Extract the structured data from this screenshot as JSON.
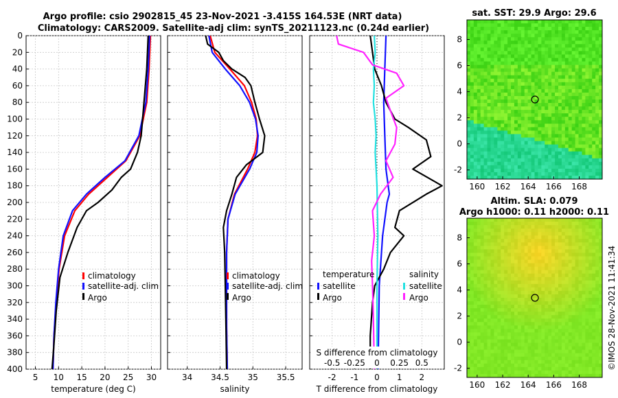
{
  "title": {
    "line1": "Argo profile: csio 2902815_45 23-Nov-2021 -3.415S 164.53E (NRT data)",
    "line2": "Climatology: CARS2009. Satellite-adj clim: synTS_20211123.nc (0.24d earlier)"
  },
  "side_stamp": "©IMOS 28-Nov-2021 11:41:34",
  "colors": {
    "climatology": "#ff0000",
    "satellite_adj": "#1010ff",
    "argo": "#000000",
    "s_satellite": "#20e0e0",
    "s_argo": "#ff20ff",
    "zero_line": "#000000"
  },
  "chart_data": [
    {
      "type": "line",
      "name": "temperature-profile",
      "xlabel": "temperature (deg C)",
      "ylabel": "",
      "xlim": [
        3,
        32
      ],
      "ylim": [
        0,
        400
      ],
      "xticks": [
        5,
        10,
        15,
        20,
        25,
        30
      ],
      "yticks": [
        0,
        20,
        40,
        60,
        80,
        100,
        120,
        140,
        160,
        180,
        200,
        220,
        240,
        260,
        280,
        300,
        320,
        340,
        360,
        380,
        400
      ],
      "legend": [
        "climatology",
        "satellite-adj. clim",
        "Argo"
      ],
      "legend_position": "lower-right",
      "series": [
        {
          "name": "climatology",
          "color": "#ff0000",
          "depth": [
            0,
            40,
            80,
            120,
            150,
            170,
            190,
            210,
            240,
            280,
            320,
            360,
            400
          ],
          "values": [
            29.8,
            29.5,
            29.0,
            27.5,
            24.5,
            20.5,
            16.5,
            13.5,
            11.3,
            10.1,
            9.5,
            9.0,
            8.8
          ]
        },
        {
          "name": "satellite-adj. clim",
          "color": "#1010ff",
          "depth": [
            0,
            40,
            80,
            120,
            150,
            170,
            190,
            210,
            240,
            280,
            320,
            360,
            400
          ],
          "values": [
            29.6,
            29.3,
            28.8,
            27.3,
            24.3,
            20.0,
            16.0,
            13.0,
            11.0,
            10.0,
            9.4,
            9.0,
            8.8
          ]
        },
        {
          "name": "Argo",
          "color": "#000000",
          "depth": [
            0,
            40,
            80,
            120,
            140,
            160,
            170,
            185,
            200,
            210,
            230,
            260,
            290,
            330,
            370,
            400
          ],
          "values": [
            29.3,
            29.0,
            28.4,
            27.8,
            27.0,
            25.5,
            23.5,
            21.5,
            18.5,
            16.0,
            14.0,
            12.0,
            10.3,
            9.5,
            9.0,
            8.6
          ]
        }
      ]
    },
    {
      "type": "line",
      "name": "salinity-profile",
      "xlabel": "salinity",
      "xlim": [
        33.7,
        35.75
      ],
      "ylim": [
        0,
        400
      ],
      "xticks": [
        34,
        34.5,
        35,
        35.5
      ],
      "legend": [
        "climatology",
        "satellite-adj. clim",
        "Argo"
      ],
      "legend_position": "lower-left",
      "series": [
        {
          "name": "climatology",
          "color": "#ff0000",
          "depth": [
            0,
            20,
            40,
            60,
            80,
            100,
            120,
            140,
            160,
            190,
            220,
            260,
            300,
            350,
            400
          ],
          "values": [
            34.35,
            34.42,
            34.65,
            34.87,
            34.98,
            35.05,
            35.07,
            35.03,
            34.92,
            34.72,
            34.62,
            34.6,
            34.6,
            34.6,
            34.61
          ]
        },
        {
          "name": "satellite-adj. clim",
          "color": "#1010ff",
          "depth": [
            0,
            20,
            40,
            60,
            80,
            100,
            120,
            140,
            160,
            190,
            220,
            260,
            300,
            350,
            400
          ],
          "values": [
            34.33,
            34.38,
            34.58,
            34.8,
            34.95,
            35.04,
            35.08,
            35.06,
            34.95,
            34.73,
            34.62,
            34.6,
            34.6,
            34.6,
            34.61
          ]
        },
        {
          "name": "Argo",
          "color": "#000000",
          "depth": [
            0,
            10,
            20,
            30,
            40,
            50,
            60,
            80,
            100,
            120,
            140,
            155,
            170,
            190,
            210,
            230,
            260,
            300,
            350,
            400
          ],
          "values": [
            34.28,
            34.31,
            34.48,
            34.55,
            34.68,
            34.88,
            34.97,
            35.03,
            35.1,
            35.18,
            35.15,
            34.9,
            34.75,
            34.68,
            34.6,
            34.55,
            34.57,
            34.58,
            34.59,
            34.6
          ]
        }
      ]
    },
    {
      "type": "line",
      "name": "difference-profile",
      "xlabel": "T difference from climatology",
      "xlabel_top": "S difference from climatology",
      "xlim": [
        -3,
        3
      ],
      "ylim": [
        0,
        400
      ],
      "xticks": [
        -2,
        -1,
        0,
        1,
        2
      ],
      "xticks_top": [
        -0.5,
        -0.25,
        0,
        0.25,
        0.5
      ],
      "legend_titles": [
        "temperature",
        "salinity"
      ],
      "legend": [
        "satellite",
        "Argo",
        "satellite",
        "Argo"
      ],
      "legend_position": "lower-center",
      "series": [
        {
          "name": "temperature satellite",
          "color": "#1010ff",
          "depth": [
            0,
            40,
            80,
            120,
            160,
            180,
            190,
            200,
            240,
            300,
            400
          ],
          "values": [
            0.4,
            0.35,
            0.3,
            0.35,
            0.4,
            0.5,
            0.55,
            0.45,
            0.25,
            0.1,
            0.05
          ]
        },
        {
          "name": "temperature Argo",
          "color": "#000000",
          "depth": [
            0,
            20,
            40,
            60,
            80,
            100,
            110,
            125,
            145,
            160,
            180,
            190,
            210,
            230,
            240,
            260,
            280,
            300,
            320,
            360,
            400
          ],
          "values": [
            -0.3,
            -0.2,
            -0.1,
            0.2,
            0.4,
            0.8,
            1.4,
            2.2,
            2.4,
            1.6,
            2.9,
            2.2,
            1.0,
            0.8,
            1.2,
            0.6,
            0.3,
            -0.1,
            -0.2,
            -0.3,
            -0.3
          ]
        },
        {
          "name": "salinity satellite",
          "color": "#20e0e0",
          "depth": [
            0,
            20,
            40,
            60,
            80,
            100,
            120,
            140,
            180,
            240,
            300,
            400
          ],
          "values": [
            -0.03,
            -0.02,
            -0.04,
            -0.03,
            -0.04,
            -0.02,
            -0.01,
            -0.02,
            0.0,
            0.01,
            0.0,
            0.0
          ]
        },
        {
          "name": "salinity Argo",
          "color": "#ff20ff",
          "depth": [
            0,
            10,
            20,
            35,
            45,
            60,
            75,
            90,
            110,
            130,
            150,
            170,
            190,
            210,
            240,
            270,
            300,
            340,
            400
          ],
          "values": [
            -0.45,
            -0.43,
            -0.15,
            -0.05,
            0.22,
            0.3,
            0.1,
            0.15,
            0.22,
            0.2,
            0.1,
            0.18,
            0.04,
            -0.05,
            -0.03,
            -0.06,
            -0.05,
            -0.04,
            -0.03
          ]
        }
      ]
    },
    {
      "type": "heatmap",
      "name": "sst-map",
      "title": "sat. SST: 29.9 Argo: 29.6",
      "xlim": [
        159.2,
        169.8
      ],
      "ylim": [
        -2.7,
        9.5
      ],
      "xticks": [
        160,
        162,
        164,
        166,
        168
      ],
      "yticks": [
        -2,
        0,
        2,
        4,
        6,
        8
      ],
      "marker": [
        164.53,
        3.4
      ]
    },
    {
      "type": "heatmap",
      "name": "sla-map",
      "title": "Altim. SLA: 0.079",
      "title2": "Argo h1000: 0.11 h2000: 0.11",
      "xlim": [
        159.2,
        169.8
      ],
      "ylim": [
        -2.7,
        9.5
      ],
      "xticks": [
        160,
        162,
        164,
        166,
        168
      ],
      "yticks": [
        -2,
        0,
        2,
        4,
        6,
        8
      ],
      "marker": [
        164.53,
        3.4
      ]
    }
  ]
}
